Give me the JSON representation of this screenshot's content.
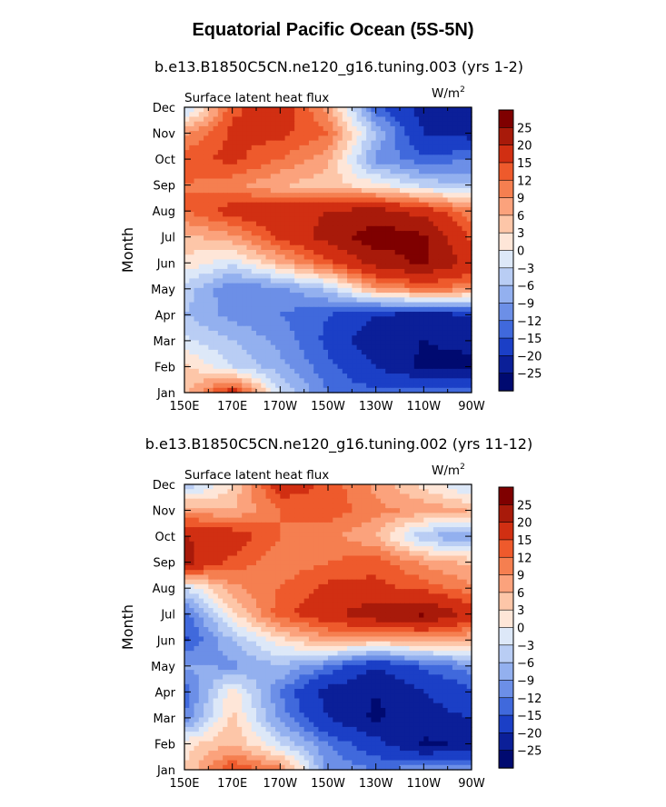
{
  "title": "Equatorial Pacific Ocean (5S-5N)",
  "months": [
    "Jan",
    "Feb",
    "Mar",
    "Apr",
    "May",
    "Jun",
    "Jul",
    "Aug",
    "Sep",
    "Oct",
    "Nov",
    "Dec"
  ],
  "longitudes": [
    "150E",
    "170E",
    "170W",
    "150W",
    "130W",
    "110W",
    "90W"
  ],
  "ylabel": "Month",
  "colorbar": {
    "levels": [
      25,
      20,
      15,
      12,
      9,
      6,
      3,
      0,
      -3,
      -6,
      -9,
      -12,
      -15,
      -20,
      -25
    ],
    "colors": [
      "#7f0000",
      "#a81a0a",
      "#d12f12",
      "#ee5a2c",
      "#f57f50",
      "#fba27c",
      "#fdc6a8",
      "#fee6d8",
      "#dde8f8",
      "#b9cdf4",
      "#93b0ef",
      "#6c8fe7",
      "#4069dc",
      "#1b3fc6",
      "#0b1f98",
      "#000a70"
    ]
  },
  "chart_data": [
    {
      "type": "heatmap",
      "subtitle": "b.e13.B1850C5CN.ne120_g16.tuning.003 (yrs 1-2)",
      "variable": "Surface latent heat flux",
      "units": "W/m",
      "units_sup": "2",
      "x": [
        "150E",
        "170E",
        "170W",
        "150W",
        "130W",
        "110W",
        "90W"
      ],
      "y": [
        "Jan",
        "Feb",
        "Mar",
        "Apr",
        "May",
        "Jun",
        "Jul",
        "Aug",
        "Sep",
        "Oct",
        "Nov",
        "Dec"
      ],
      "values": [
        [
          5,
          18,
          -3,
          -12,
          -14,
          -12,
          -13
        ],
        [
          4,
          -3,
          -8,
          -14,
          -20,
          -26,
          -26
        ],
        [
          -2,
          -6,
          -10,
          -16,
          -24,
          -25,
          -24
        ],
        [
          -6,
          -10,
          -12,
          -15,
          -20,
          -22,
          -20
        ],
        [
          -4,
          -12,
          -10,
          -5,
          8,
          12,
          10
        ],
        [
          2,
          -2,
          6,
          14,
          22,
          26,
          18
        ],
        [
          5,
          8,
          16,
          22,
          28,
          26,
          14
        ],
        [
          12,
          17,
          18,
          20,
          22,
          18,
          10
        ],
        [
          12,
          10,
          6,
          4,
          1,
          -4,
          -6
        ],
        [
          14,
          16,
          12,
          7,
          -10,
          -14,
          -12
        ],
        [
          8,
          16,
          16,
          12,
          -6,
          -20,
          -22
        ],
        [
          -5,
          14,
          18,
          8,
          -14,
          -22,
          -22
        ]
      ]
    },
    {
      "type": "heatmap",
      "subtitle": "b.e13.B1850C5CN.ne120_g16.tuning.002 (yrs 11-12)",
      "variable": "Surface latent heat flux",
      "units": "W/m",
      "units_sup": "2",
      "x": [
        "150E",
        "170E",
        "170W",
        "150W",
        "130W",
        "110W",
        "90W"
      ],
      "y": [
        "Jan",
        "Feb",
        "Mar",
        "Apr",
        "May",
        "Jun",
        "Jul",
        "Aug",
        "Sep",
        "Oct",
        "Nov",
        "Dec"
      ],
      "values": [
        [
          3,
          15,
          10,
          -10,
          -12,
          -10,
          -10
        ],
        [
          2,
          6,
          -3,
          -12,
          -18,
          -26,
          -24
        ],
        [
          -12,
          4,
          -10,
          -20,
          -26,
          -22,
          -20
        ],
        [
          -14,
          2,
          -12,
          -22,
          -25,
          -20,
          -16
        ],
        [
          -8,
          -10,
          -6,
          -12,
          -20,
          -14,
          -10
        ],
        [
          -16,
          -6,
          2,
          8,
          6,
          8,
          6
        ],
        [
          -14,
          2,
          14,
          18,
          24,
          26,
          18
        ],
        [
          -3,
          8,
          12,
          16,
          16,
          14,
          10
        ],
        [
          22,
          14,
          10,
          12,
          14,
          8,
          5
        ],
        [
          20,
          18,
          12,
          10,
          6,
          -6,
          -10
        ],
        [
          8,
          6,
          12,
          14,
          10,
          8,
          6
        ],
        [
          -6,
          3,
          18,
          14,
          8,
          2,
          -4
        ]
      ]
    }
  ]
}
